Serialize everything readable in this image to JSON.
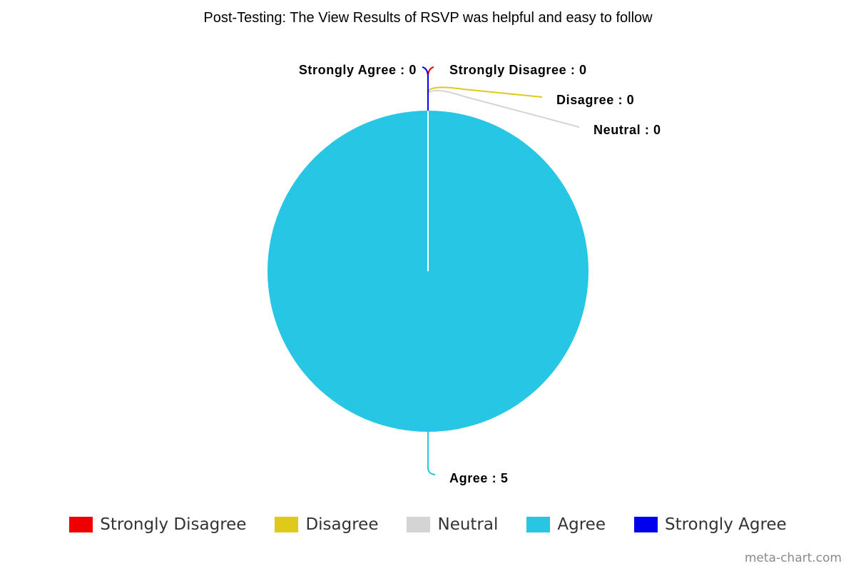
{
  "chart_data": {
    "type": "pie",
    "title": "Post-Testing: The View Results of RSVP was helpful and easy to follow",
    "slices": [
      {
        "label": "Strongly Disagree",
        "value": 0,
        "color": "#ee0000",
        "data_label": "Strongly Disagree : 0"
      },
      {
        "label": "Disagree",
        "value": 0,
        "color": "#dfca19",
        "data_label": "Disagree : 0"
      },
      {
        "label": "Neutral",
        "value": 0,
        "color": "#d4d4d4",
        "data_label": "Neutral : 0"
      },
      {
        "label": "Agree",
        "value": 5,
        "color": "#26c6e4",
        "data_label": "Agree : 5"
      },
      {
        "label": "Strongly Agree",
        "value": 0,
        "color": "#0000ee",
        "data_label": "Strongly Agree : 0"
      }
    ],
    "legend_position": "bottom"
  },
  "watermark": "meta-chart.com"
}
